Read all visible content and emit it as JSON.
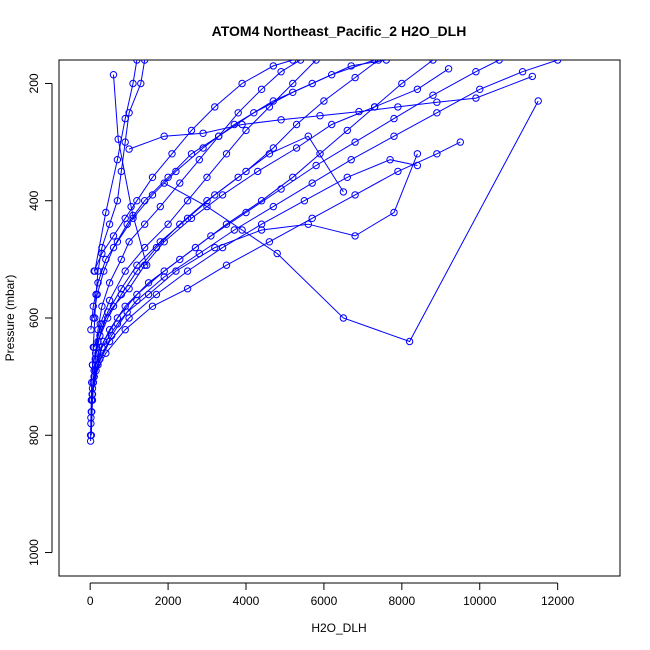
{
  "chart_data": {
    "type": "line",
    "title": "ATOM4 Northeast_Pacific_2 H2O_DLH",
    "xlabel": "H2O_DLH",
    "ylabel": "Pressure (mbar)",
    "xlim": [
      -800,
      13600
    ],
    "ylim": [
      1040,
      160
    ],
    "y_reversed": true,
    "grid": false,
    "legend": "none",
    "marker": "open-circle",
    "x_ticks": [
      0,
      2000,
      4000,
      6000,
      8000,
      10000,
      12000
    ],
    "y_ticks": [
      200,
      400,
      600,
      800,
      1000
    ],
    "x_tick_labels": [
      "0",
      "2000",
      "4000",
      "6000",
      "8000",
      "10000",
      "12000"
    ],
    "y_tick_labels": [
      "200",
      "400",
      "600",
      "800",
      "1000"
    ],
    "color": "#0000ff",
    "series": [
      {
        "points": [
          [
            10,
            810
          ],
          [
            20,
            770
          ],
          [
            30,
            740
          ],
          [
            40,
            710
          ],
          [
            60,
            680
          ],
          [
            80,
            650
          ],
          [
            120,
            600
          ],
          [
            150,
            560
          ],
          [
            200,
            520
          ],
          [
            300,
            480
          ],
          [
            500,
            440
          ],
          [
            700,
            400
          ],
          [
            800,
            350
          ],
          [
            900,
            300
          ],
          [
            1000,
            250
          ],
          [
            1300,
            200
          ],
          [
            1400,
            160
          ]
        ]
      },
      {
        "points": [
          [
            30,
            800
          ],
          [
            60,
            740
          ],
          [
            100,
            700
          ],
          [
            140,
            660
          ],
          [
            200,
            620
          ],
          [
            300,
            580
          ],
          [
            500,
            540
          ],
          [
            800,
            500
          ],
          [
            1000,
            470
          ],
          [
            1400,
            440
          ],
          [
            1800,
            410
          ],
          [
            2300,
            370
          ],
          [
            2800,
            330
          ],
          [
            3300,
            290
          ],
          [
            3800,
            250
          ],
          [
            4400,
            210
          ],
          [
            4900,
            180
          ],
          [
            5400,
            160
          ]
        ]
      },
      {
        "points": [
          [
            20,
            780
          ],
          [
            50,
            730
          ],
          [
            100,
            690
          ],
          [
            160,
            650
          ],
          [
            260,
            610
          ],
          [
            500,
            570
          ],
          [
            900,
            520
          ],
          [
            1400,
            480
          ],
          [
            2000,
            440
          ],
          [
            2500,
            400
          ],
          [
            3000,
            360
          ],
          [
            3500,
            320
          ],
          [
            4000,
            280
          ],
          [
            4600,
            240
          ],
          [
            5200,
            200
          ],
          [
            5800,
            160
          ]
        ]
      },
      {
        "points": [
          [
            40,
            760
          ],
          [
            80,
            710
          ],
          [
            130,
            670
          ],
          [
            250,
            630
          ],
          [
            450,
            590
          ],
          [
            800,
            550
          ],
          [
            1200,
            510
          ],
          [
            1800,
            470
          ],
          [
            2500,
            430
          ],
          [
            3200,
            390
          ],
          [
            4000,
            350
          ],
          [
            4700,
            310
          ],
          [
            5300,
            270
          ],
          [
            6000,
            230
          ],
          [
            6800,
            190
          ],
          [
            7400,
            160
          ]
        ]
      },
      {
        "points": [
          [
            10,
            800
          ],
          [
            60,
            720
          ],
          [
            150,
            680
          ],
          [
            350,
            640
          ],
          [
            700,
            600
          ],
          [
            1200,
            560
          ],
          [
            1900,
            520
          ],
          [
            2700,
            480
          ],
          [
            3500,
            440
          ],
          [
            4400,
            400
          ],
          [
            5200,
            360
          ],
          [
            5900,
            320
          ],
          [
            6600,
            280
          ],
          [
            7300,
            240
          ],
          [
            8000,
            200
          ],
          [
            8800,
            160
          ]
        ]
      },
      {
        "points": [
          [
            30,
            760
          ],
          [
            100,
            700
          ],
          [
            200,
            660
          ],
          [
            500,
            620
          ],
          [
            900,
            580
          ],
          [
            1500,
            540
          ],
          [
            2300,
            500
          ],
          [
            3100,
            460
          ],
          [
            4000,
            420
          ],
          [
            4900,
            380
          ],
          [
            5800,
            340
          ],
          [
            6800,
            300
          ],
          [
            7800,
            260
          ],
          [
            8800,
            220
          ],
          [
            9900,
            180
          ],
          [
            10500,
            160
          ]
        ]
      },
      {
        "points": [
          [
            40,
            740
          ],
          [
            150,
            690
          ],
          [
            300,
            650
          ],
          [
            700,
            610
          ],
          [
            1200,
            570
          ],
          [
            1900,
            530
          ],
          [
            2800,
            490
          ],
          [
            3700,
            450
          ],
          [
            4700,
            410
          ],
          [
            5700,
            370
          ],
          [
            6700,
            330
          ],
          [
            7800,
            290
          ],
          [
            8900,
            250
          ],
          [
            10000,
            210
          ],
          [
            11100,
            180
          ],
          [
            12000,
            160
          ]
        ]
      },
      {
        "points": [
          [
            60,
            730
          ],
          [
            200,
            680
          ],
          [
            500,
            640
          ],
          [
            1000,
            600
          ],
          [
            1700,
            560
          ],
          [
            2500,
            520
          ],
          [
            3400,
            480
          ],
          [
            4400,
            440
          ],
          [
            5500,
            400
          ],
          [
            6600,
            360
          ],
          [
            7700,
            330
          ],
          [
            8400,
            340
          ]
        ]
      },
      {
        "points": [
          [
            100,
            700
          ],
          [
            400,
            660
          ],
          [
            900,
            620
          ],
          [
            1600,
            580
          ],
          [
            2500,
            550
          ],
          [
            3500,
            510
          ],
          [
            4600,
            470
          ],
          [
            5700,
            430
          ],
          [
            6800,
            390
          ],
          [
            7900,
            350
          ],
          [
            8900,
            320
          ],
          [
            9500,
            300
          ]
        ]
      },
      {
        "points": [
          [
            80,
            710
          ],
          [
            250,
            670
          ],
          [
            550,
            630
          ],
          [
            950,
            590
          ],
          [
            1500,
            560
          ],
          [
            2200,
            520
          ],
          [
            3200,
            480
          ],
          [
            4400,
            450
          ],
          [
            5600,
            440
          ],
          [
            6800,
            460
          ],
          [
            7800,
            420
          ],
          [
            8400,
            320
          ]
        ]
      },
      {
        "points": [
          [
            60,
            680
          ],
          [
            200,
            640
          ],
          [
            450,
            600
          ],
          [
            800,
            560
          ],
          [
            1200,
            520
          ],
          [
            1700,
            480
          ],
          [
            2300,
            440
          ],
          [
            3000,
            400
          ],
          [
            3800,
            360
          ],
          [
            4600,
            320
          ],
          [
            5600,
            290
          ],
          [
            6500,
            385
          ]
        ]
      },
      {
        "points": [
          [
            100,
            650
          ],
          [
            300,
            610
          ],
          [
            600,
            580
          ],
          [
            1000,
            550
          ],
          [
            1400,
            510
          ],
          [
            1900,
            470
          ],
          [
            2600,
            430
          ],
          [
            3400,
            390
          ],
          [
            4300,
            350
          ],
          [
            5300,
            310
          ],
          [
            6200,
            270
          ],
          [
            7300,
            240
          ],
          [
            8400,
            210
          ],
          [
            9200,
            175
          ]
        ]
      },
      {
        "points": [
          [
            20,
            620
          ],
          [
            80,
            580
          ],
          [
            200,
            540
          ],
          [
            400,
            500
          ],
          [
            700,
            470
          ],
          [
            1100,
            430
          ],
          [
            1600,
            390
          ],
          [
            2200,
            350
          ],
          [
            2900,
            310
          ],
          [
            3700,
            270
          ],
          [
            4700,
            230
          ],
          [
            5700,
            200
          ],
          [
            6700,
            170
          ],
          [
            7600,
            160
          ]
        ]
      },
      {
        "points": [
          [
            80,
            600
          ],
          [
            180,
            560
          ],
          [
            350,
            520
          ],
          [
            600,
            480
          ],
          [
            950,
            440
          ],
          [
            1400,
            400
          ],
          [
            2000,
            360
          ],
          [
            2600,
            320
          ],
          [
            3300,
            290
          ],
          [
            4200,
            250
          ],
          [
            5200,
            215
          ],
          [
            6200,
            185
          ],
          [
            7300,
            160
          ]
        ]
      },
      {
        "points": [
          [
            100,
            520
          ],
          [
            300,
            490
          ],
          [
            600,
            460
          ],
          [
            900,
            430
          ],
          [
            1200,
            400
          ],
          [
            1600,
            360
          ],
          [
            2100,
            320
          ],
          [
            2600,
            280
          ],
          [
            3200,
            240
          ],
          [
            3900,
            200
          ],
          [
            4700,
            170
          ],
          [
            5200,
            160
          ]
        ]
      },
      {
        "points": [
          [
            120,
            520
          ],
          [
            400,
            420
          ],
          [
            700,
            330
          ],
          [
            900,
            260
          ],
          [
            1100,
            200
          ],
          [
            1200,
            160
          ]
        ]
      },
      {
        "points": [
          [
            600,
            185
          ],
          [
            720,
            295
          ],
          [
            1050,
            410
          ],
          [
            1100,
            425
          ],
          [
            1450,
            510
          ]
        ]
      },
      {
        "points": [
          [
            1000,
            312
          ],
          [
            1900,
            290
          ],
          [
            2900,
            285
          ],
          [
            3900,
            270
          ],
          [
            4900,
            262
          ],
          [
            5900,
            255
          ],
          [
            6900,
            248
          ],
          [
            7900,
            240
          ],
          [
            8900,
            232
          ],
          [
            9900,
            225
          ],
          [
            11350,
            188
          ]
        ]
      },
      {
        "points": [
          [
            1900,
            370
          ],
          [
            3000,
            410
          ],
          [
            3900,
            450
          ],
          [
            4800,
            490
          ],
          [
            6500,
            600
          ],
          [
            8200,
            640
          ],
          [
            11500,
            230
          ]
        ]
      }
    ]
  }
}
